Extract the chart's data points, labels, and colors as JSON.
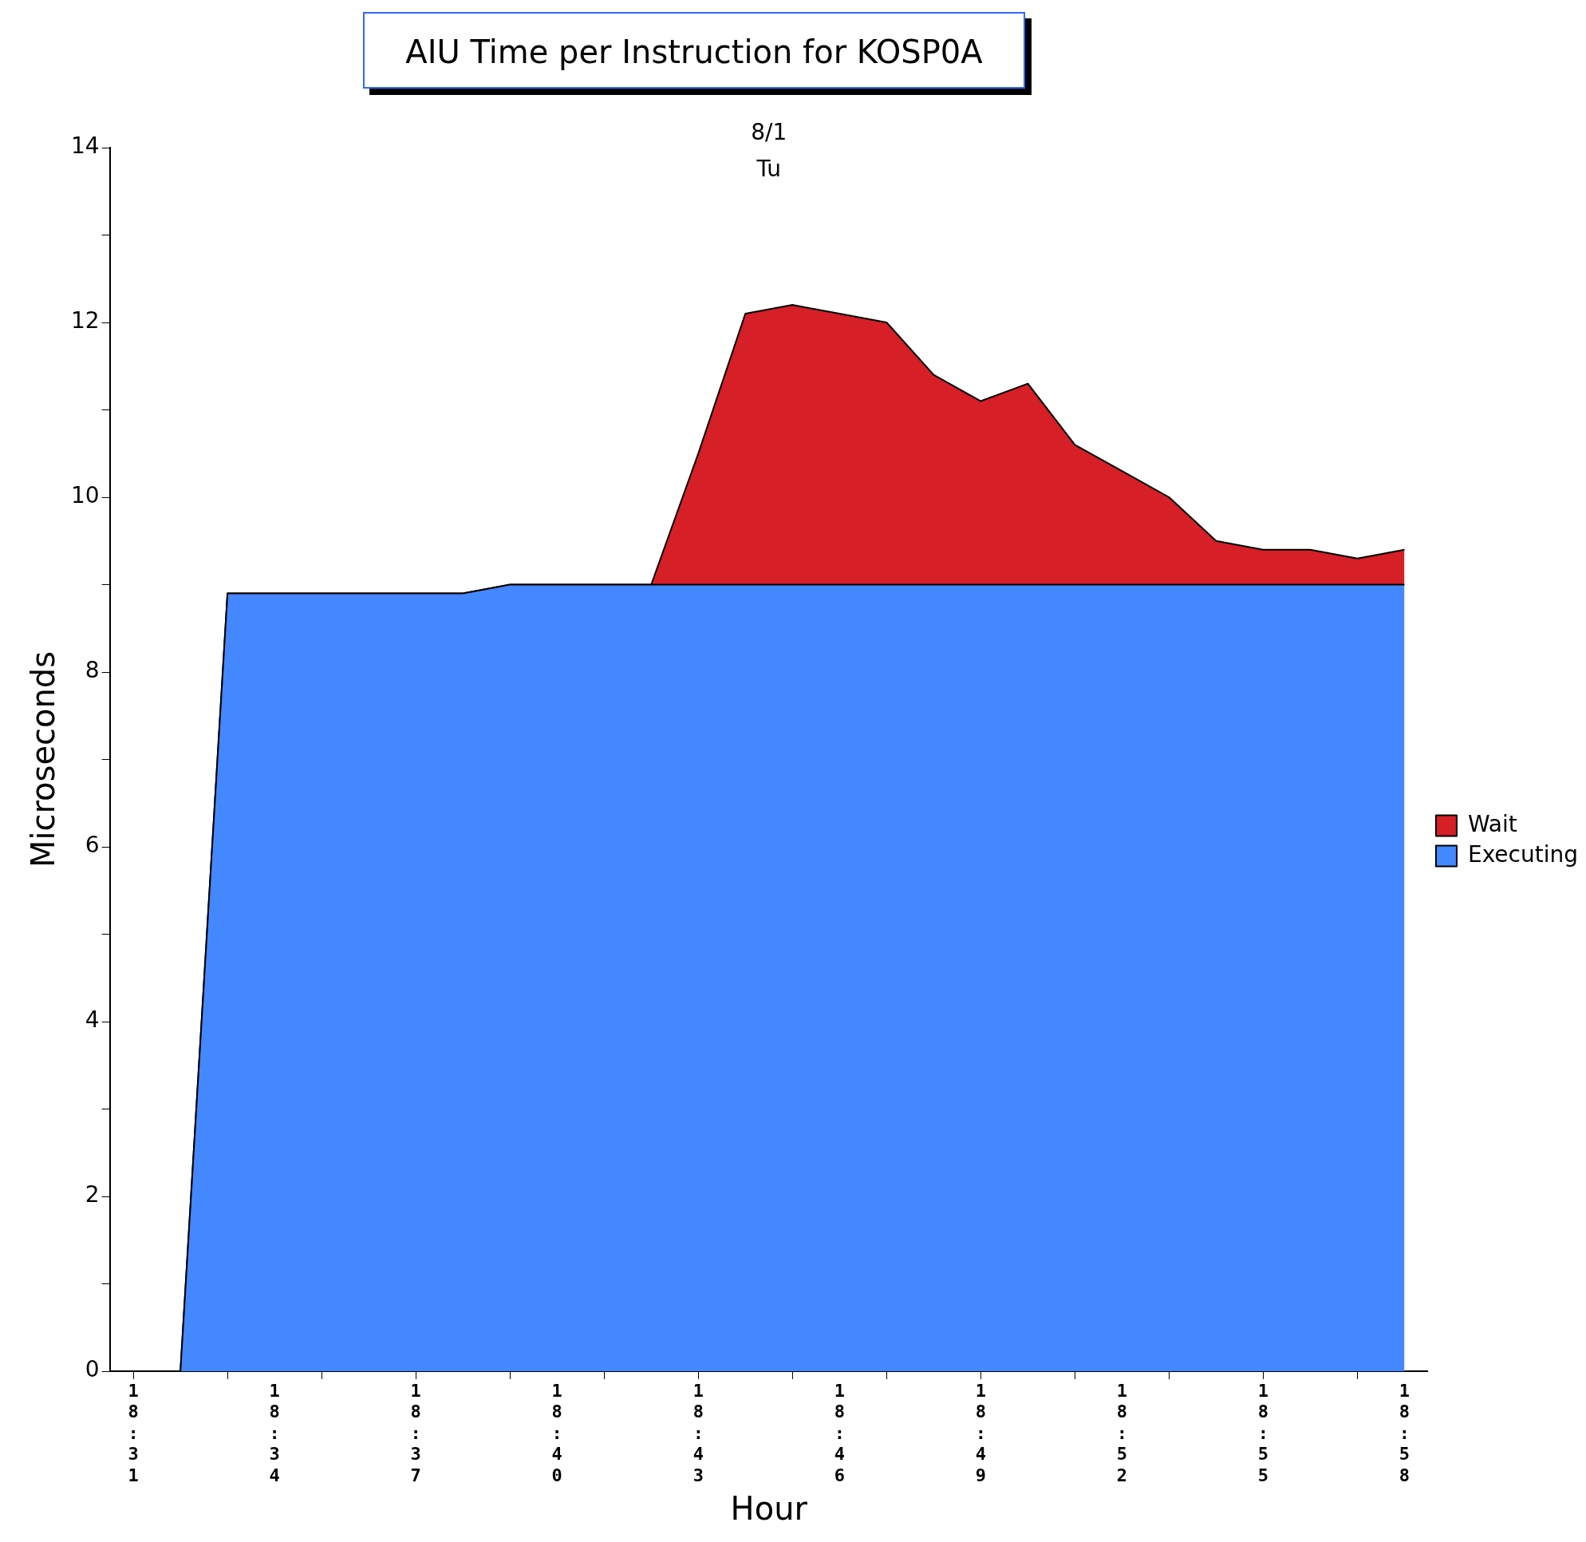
{
  "chart_data": {
    "type": "area",
    "title": "AIU Time per Instruction for KOSP0A",
    "annotations": [
      "8/1",
      "Tu"
    ],
    "xlabel": "Hour",
    "ylabel": "Microseconds",
    "categories": [
      "18:31",
      null,
      null,
      "18:34",
      null,
      null,
      "18:37",
      null,
      null,
      "18:40",
      null,
      null,
      "18:43",
      null,
      null,
      "18:46",
      null,
      null,
      "18:49",
      null,
      null,
      "18:52",
      null,
      null,
      "18:55",
      null,
      null,
      "18:58"
    ],
    "stacked": true,
    "series": [
      {
        "name": "Executing",
        "color": "#4488ff",
        "values": [
          null,
          0,
          8.9,
          8.9,
          8.9,
          8.9,
          8.9,
          8.9,
          9.0,
          9.0,
          9.0,
          9.0,
          9.0,
          9.0,
          9.0,
          9.0,
          9.0,
          9.0,
          9.0,
          9.0,
          9.0,
          9.0,
          9.0,
          9.0,
          9.0,
          9.0,
          9.0,
          9.0
        ]
      },
      {
        "name": "Wait",
        "color": "#d61f26",
        "values": [
          null,
          0,
          0,
          0,
          0,
          0,
          0,
          0,
          0,
          0,
          0,
          0,
          1.5,
          3.1,
          3.2,
          3.1,
          3.0,
          2.4,
          2.1,
          2.3,
          1.6,
          1.3,
          1.0,
          0.5,
          0.4,
          0.4,
          0.3,
          0.4
        ]
      }
    ],
    "ylim": [
      0,
      14
    ],
    "yticks": [
      0,
      {
        "value": 1,
        "label": null
      },
      2,
      {
        "value": 3,
        "label": null
      },
      4,
      {
        "value": 5,
        "label": null
      },
      6,
      {
        "value": 7,
        "label": null
      },
      8,
      {
        "value": 9,
        "label": null
      },
      10,
      {
        "value": 11,
        "label": null
      },
      12,
      {
        "value": 13,
        "label": null
      },
      14
    ],
    "grid": false,
    "legend": "right",
    "marker": "none"
  }
}
